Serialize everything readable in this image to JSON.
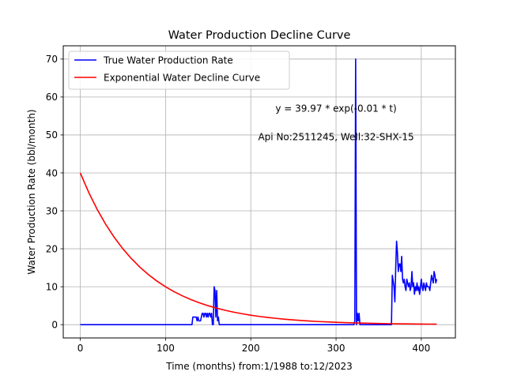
{
  "chart_data": {
    "type": "line",
    "title": "Water Production Decline Curve",
    "xlabel": "Time (months) from:1/1988 to:12/2023",
    "ylabel": "Water Production Rate (bbl/month)",
    "xlim": [
      -20,
      440
    ],
    "ylim": [
      -3.5,
      73.5
    ],
    "xticks": [
      0,
      100,
      200,
      300,
      400
    ],
    "yticks": [
      0,
      10,
      20,
      30,
      40,
      50,
      60,
      70
    ],
    "grid": true,
    "legend_position": "top-left",
    "annotations": [
      {
        "text": "y = 39.97 * exp(-0.01 * t)",
        "x": 300,
        "y": 57
      },
      {
        "text": "Api No:2511245, Well:32-SHX-15",
        "x": 300,
        "y": 49.5
      }
    ],
    "series": [
      {
        "name": "True Water Production Rate",
        "color": "#0000ff",
        "x": [
          0,
          131,
          132,
          136,
          137,
          138,
          139,
          140,
          141,
          142,
          143,
          144,
          145,
          146,
          147,
          148,
          149,
          150,
          151,
          152,
          153,
          154,
          155,
          156,
          157,
          158,
          159,
          160,
          161,
          162,
          163,
          164,
          165,
          166,
          167,
          168,
          170,
          321,
          322,
          323,
          324,
          325,
          326,
          327,
          328,
          329,
          330,
          365,
          366,
          368,
          369,
          370,
          371,
          372,
          373,
          374,
          375,
          376,
          377,
          378,
          379,
          380,
          381,
          382,
          383,
          384,
          385,
          386,
          387,
          388,
          389,
          390,
          391,
          392,
          393,
          394,
          395,
          396,
          397,
          398,
          399,
          400,
          401,
          402,
          403,
          404,
          405,
          406,
          407,
          408,
          409,
          410,
          411,
          412,
          413,
          414,
          415,
          416,
          417,
          418
        ],
        "y": [
          0,
          0,
          2,
          2,
          1,
          2,
          1,
          1,
          1,
          2,
          3,
          3,
          2,
          3,
          3,
          2,
          3,
          2,
          3,
          3,
          2,
          3,
          0,
          0,
          10,
          9,
          2,
          9,
          1,
          2,
          0,
          0,
          0,
          0,
          0,
          0,
          0,
          0,
          1,
          70,
          0,
          3,
          1,
          3,
          0,
          0,
          0,
          0,
          13,
          10,
          6,
          15,
          22,
          19,
          14,
          16,
          16,
          14,
          18,
          12,
          11,
          12,
          10,
          9,
          12,
          11,
          10,
          11,
          9,
          10,
          14,
          10,
          11,
          8,
          10,
          9,
          11,
          9,
          10,
          8,
          10,
          12,
          10,
          9,
          11,
          10,
          9,
          11,
          10,
          10,
          10,
          9,
          11,
          13,
          12,
          11,
          14,
          13,
          11,
          12
        ]
      },
      {
        "name": "Exponential Water Decline Curve",
        "color": "#ff0000",
        "x": [
          0,
          10,
          20,
          30,
          40,
          50,
          60,
          70,
          80,
          90,
          100,
          110,
          120,
          130,
          140,
          150,
          160,
          170,
          180,
          190,
          200,
          210,
          220,
          230,
          240,
          250,
          260,
          270,
          280,
          290,
          300,
          310,
          320,
          330,
          340,
          350,
          360,
          370,
          380,
          390,
          400,
          410,
          418
        ],
        "y": [
          39.97,
          34.8,
          30.29,
          26.37,
          22.95,
          19.98,
          17.39,
          15.14,
          13.18,
          11.47,
          9.99,
          8.69,
          7.57,
          6.59,
          5.73,
          4.99,
          4.34,
          3.78,
          3.29,
          2.87,
          2.49,
          2.17,
          1.89,
          1.65,
          1.43,
          1.25,
          1.09,
          0.94,
          0.82,
          0.72,
          0.62,
          0.54,
          0.47,
          0.41,
          0.36,
          0.31,
          0.27,
          0.24,
          0.2,
          0.18,
          0.16,
          0.14,
          0.12
        ]
      }
    ]
  }
}
